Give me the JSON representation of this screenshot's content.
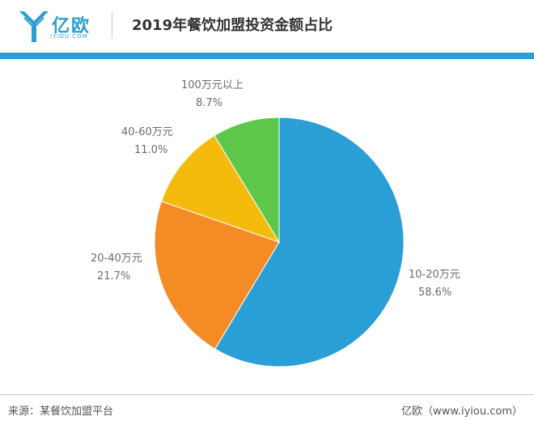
{
  "header": {
    "logo_text": "亿欧",
    "logo_sub": "IYIOU·COM",
    "title": "2019年餐饮加盟投资金额占比"
  },
  "colors": {
    "brand": "#2a9fd0",
    "slice_10_20": "#2a9fd6",
    "slice_20_40": "#f58b24",
    "slice_40_60": "#f4bb0c",
    "slice_100": "#5ec74a"
  },
  "chart_data": {
    "type": "pie",
    "title": "2019年餐饮加盟投资金额占比",
    "start_angle_deg": 0,
    "direction": "clockwise",
    "slices": [
      {
        "label": "10-20万元",
        "value": 58.6,
        "display": "58.6%",
        "color": "#2a9fd6"
      },
      {
        "label": "20-40万元",
        "value": 21.7,
        "display": "21.7%",
        "color": "#f58b24"
      },
      {
        "label": "40-60万元",
        "value": 11.0,
        "display": "11.0%",
        "color": "#f4bb0c"
      },
      {
        "label": "100万元以上",
        "value": 8.7,
        "display": "8.7%",
        "color": "#5ec74a"
      }
    ]
  },
  "footer": {
    "source": "来源：某餐饮加盟平台",
    "credit": "亿欧（www.iyiou.com）"
  }
}
